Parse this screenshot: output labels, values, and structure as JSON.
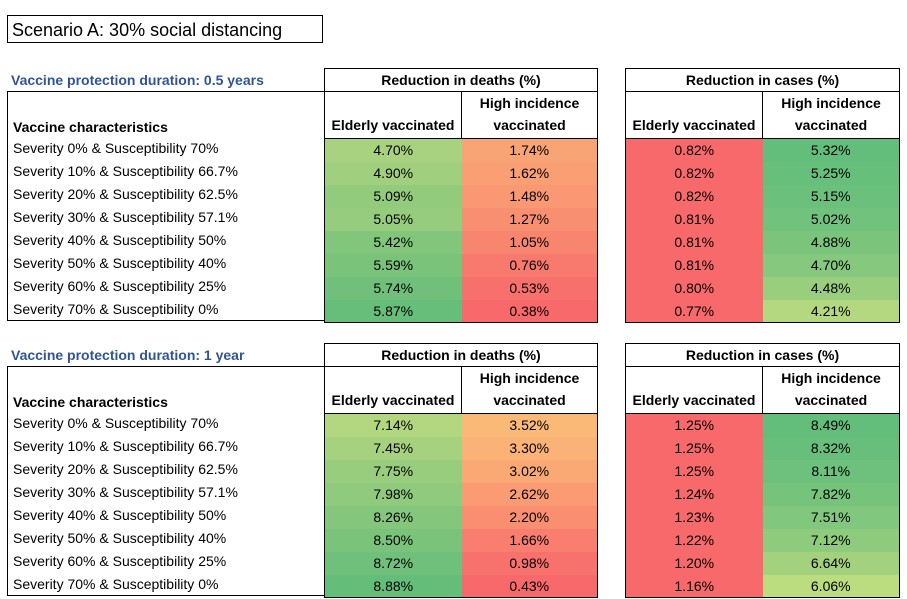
{
  "title": "Scenario A: 30% social distancing",
  "headers": {
    "label_col": "Vaccine characteristics",
    "deaths_group": "Reduction in deaths (%)",
    "cases_group": "Reduction in cases (%)",
    "elderly": "Elderly vaccinated",
    "high_incidence": "High incidence vaccinated"
  },
  "rows": [
    "Severity 0% & Susceptibility 70%",
    "Severity 10% & Susceptibility 66.7%",
    "Severity 20% & Susceptibility 62.5%",
    "Severity 30% & Susceptibility 57.1%",
    "Severity 40% & Susceptibility 50%",
    "Severity 50% & Susceptibility 40%",
    "Severity 60% & Susceptibility 25%",
    "Severity 70% & Susceptibility 0%"
  ],
  "sections": [
    {
      "title": "Vaccine protection duration: 0.5 years",
      "deaths_elderly": [
        "4.70%",
        "4.90%",
        "5.09%",
        "5.05%",
        "5.42%",
        "5.59%",
        "5.74%",
        "5.87%"
      ],
      "deaths_high": [
        "1.74%",
        "1.62%",
        "1.48%",
        "1.27%",
        "1.05%",
        "0.76%",
        "0.53%",
        "0.38%"
      ],
      "cases_elderly": [
        "0.82%",
        "0.82%",
        "0.82%",
        "0.81%",
        "0.81%",
        "0.81%",
        "0.80%",
        "0.77%"
      ],
      "cases_high": [
        "5.32%",
        "5.25%",
        "5.15%",
        "5.02%",
        "4.88%",
        "4.70%",
        "4.48%",
        "4.21%"
      ],
      "colors": {
        "deaths_elderly": [
          "#a8d27f",
          "#a0cf7e",
          "#93cb7d",
          "#96cc7d",
          "#82c67c",
          "#79c37b",
          "#70c07b",
          "#67bd7a"
        ],
        "deaths_high": [
          "#f9a474",
          "#f99f73",
          "#f99872",
          "#f98f71",
          "#f8866f",
          "#f8796e",
          "#f8706c",
          "#f8696b"
        ],
        "cases_elderly": [
          "#f8696b",
          "#f8696b",
          "#f8696b",
          "#f8696b",
          "#f8696b",
          "#f8696b",
          "#f8696b",
          "#f8696b"
        ],
        "cases_high": [
          "#63be7b",
          "#66bf7b",
          "#6bc07b",
          "#70c27c",
          "#7ac47c",
          "#86c87d",
          "#98ce7e",
          "#b4d87f"
        ]
      }
    },
    {
      "title": "Vaccine protection duration: 1 year",
      "deaths_elderly": [
        "7.14%",
        "7.45%",
        "7.75%",
        "7.98%",
        "8.26%",
        "8.50%",
        "8.72%",
        "8.88%"
      ],
      "deaths_high": [
        "3.52%",
        "3.30%",
        "3.02%",
        "2.62%",
        "2.20%",
        "1.66%",
        "0.98%",
        "0.43%"
      ],
      "cases_elderly": [
        "1.25%",
        "1.25%",
        "1.25%",
        "1.24%",
        "1.23%",
        "1.22%",
        "1.20%",
        "1.16%"
      ],
      "cases_high": [
        "8.49%",
        "8.32%",
        "8.11%",
        "7.82%",
        "7.51%",
        "7.12%",
        "6.64%",
        "6.06%"
      ],
      "colors": {
        "deaths_elderly": [
          "#b2d780",
          "#a6d27f",
          "#99cd7e",
          "#8fca7d",
          "#83c67c",
          "#79c37b",
          "#6fc07b",
          "#65bd7a"
        ],
        "deaths_high": [
          "#fbb978",
          "#fbb277",
          "#faa975",
          "#fa9b73",
          "#f98e71",
          "#f97e6f",
          "#f8726d",
          "#f8696b"
        ],
        "cases_elderly": [
          "#f8696b",
          "#f8696b",
          "#f8696b",
          "#f8696b",
          "#f8696b",
          "#f8696b",
          "#f8696b",
          "#f8696b"
        ],
        "cases_high": [
          "#63be7b",
          "#67bf7b",
          "#6dc17c",
          "#76c37c",
          "#81c77d",
          "#8fcb7d",
          "#a4d17e",
          "#bcdc80"
        ]
      }
    }
  ]
}
